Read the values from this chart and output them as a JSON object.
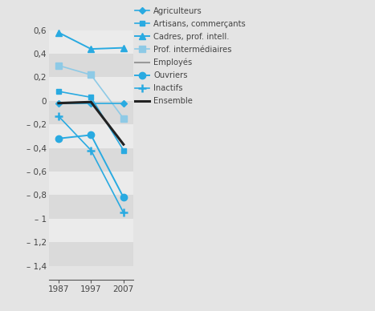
{
  "years": [
    1987,
    1997,
    2007
  ],
  "series": [
    {
      "name": "Agriculteurs",
      "values": [
        -0.02,
        -0.02,
        -0.02
      ],
      "color": "#29aae1",
      "marker": "D",
      "markersize": 4,
      "linewidth": 1.2,
      "zorder": 5
    },
    {
      "name": "Artisans, commerçants",
      "values": [
        0.08,
        0.03,
        -0.42
      ],
      "color": "#29aae1",
      "marker": "s",
      "markersize": 5,
      "linewidth": 1.2,
      "zorder": 5
    },
    {
      "name": "Cadres, prof. intell.",
      "values": [
        0.58,
        0.44,
        0.45
      ],
      "color": "#29aae1",
      "marker": "^",
      "markersize": 6,
      "linewidth": 1.4,
      "zorder": 5
    },
    {
      "name": "Prof. intermédiaires",
      "values": [
        0.3,
        0.22,
        -0.15
      ],
      "color": "#8ecae6",
      "marker": "s",
      "markersize": 6,
      "linewidth": 1.2,
      "zorder": 4
    },
    {
      "name": "Employés",
      "values": [
        -0.02,
        -0.01,
        -0.37
      ],
      "color": "#999999",
      "marker": "None",
      "markersize": 0,
      "linewidth": 1.5,
      "zorder": 3
    },
    {
      "name": "Ouvriers",
      "values": [
        -0.32,
        -0.29,
        -0.82
      ],
      "color": "#29aae1",
      "marker": "o",
      "markersize": 6,
      "linewidth": 1.4,
      "zorder": 5
    },
    {
      "name": "Inactifs",
      "values": [
        -0.13,
        -0.42,
        -0.95
      ],
      "color": "#29aae1",
      "marker": "+",
      "markersize": 7,
      "linewidth": 1.2,
      "zorder": 5
    },
    {
      "name": "Ensemble",
      "values": [
        -0.02,
        -0.01,
        -0.37
      ],
      "color": "#222222",
      "marker": "None",
      "markersize": 0,
      "linewidth": 2.2,
      "zorder": 6
    }
  ],
  "yticks": [
    0.6,
    0.4,
    0.2,
    0.0,
    -0.2,
    -0.4,
    -0.6,
    -0.8,
    -1.0,
    -1.2,
    -1.4
  ],
  "ytick_labels": [
    "0,6",
    "0,4",
    "0,2",
    "0",
    "– 0,2",
    "– 0,4",
    "– 0,6",
    "– 0,8",
    "– 1",
    "– 1,2",
    "– 1,4"
  ],
  "ylim": [
    -1.52,
    0.75
  ],
  "background_color": "#e4e4e4",
  "band_colors": [
    "#ebebeb",
    "#dadada"
  ],
  "top_bar_color": "#56c5e0",
  "fig_bg": "#e4e4e4",
  "font_color": "#444444"
}
